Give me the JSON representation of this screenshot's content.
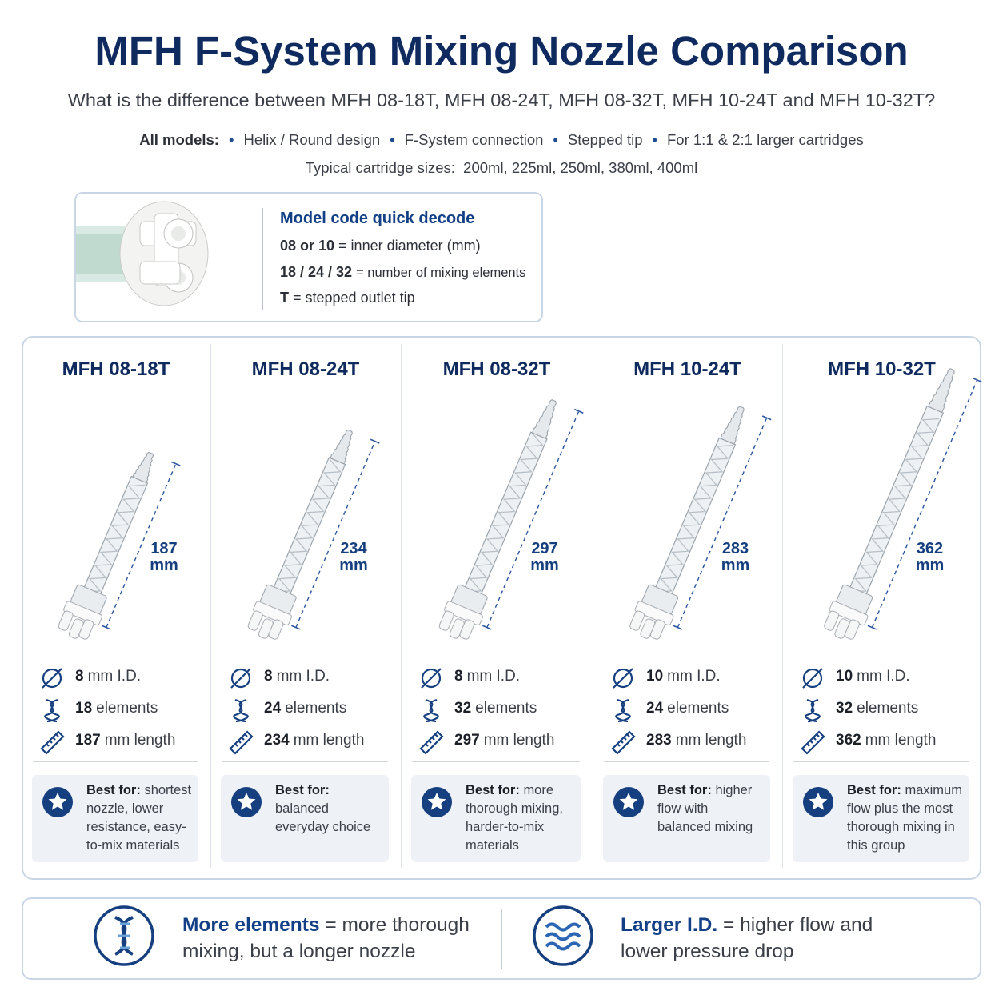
{
  "header": {
    "title": "MFH F-System Mixing Nozzle Comparison",
    "subtitle": "What is the difference between MFH 08-18T, MFH 08-24T, MFH 08-32T, MFH 10-24T and MFH 10-32T?",
    "all_models_label": "All models:",
    "features": [
      "Helix / Round design",
      "F-System connection",
      "Stepped tip",
      "For 1:1 & 2:1 larger cartridges"
    ],
    "cartridge_label": "Typical cartridge sizes:",
    "cartridge_sizes": "200ml, 225ml, 250ml, 380ml, 400ml"
  },
  "decode": {
    "title": "Model code quick decode",
    "rows": [
      {
        "code": "08 or 10",
        "meaning": "= inner diameter (mm)"
      },
      {
        "code": "18 / 24 / 32",
        "meaning": "= number of mixing elements"
      },
      {
        "code": "T",
        "meaning": "= stepped outlet tip"
      }
    ]
  },
  "spec_labels": {
    "diameter": "mm I.D.",
    "elements": "elements",
    "length": "mm length",
    "length_unit": "mm",
    "best_for": "Best for:"
  },
  "models": [
    {
      "name": "MFH 08-18T",
      "inner_diameter": 8,
      "elements": 18,
      "length": 187,
      "best_for": "shortest nozzle, lower resistance, easy-to-mix materials"
    },
    {
      "name": "MFH 08-24T",
      "inner_diameter": 8,
      "elements": 24,
      "length": 234,
      "best_for": "balanced everyday choice"
    },
    {
      "name": "MFH 08-32T",
      "inner_diameter": 8,
      "elements": 32,
      "length": 297,
      "best_for": "more thorough mixing, harder-to-mix materials"
    },
    {
      "name": "MFH 10-24T",
      "inner_diameter": 10,
      "elements": 24,
      "length": 283,
      "best_for": "higher flow with balanced mixing"
    },
    {
      "name": "MFH 10-32T",
      "inner_diameter": 10,
      "elements": 32,
      "length": 362,
      "best_for": "maximum flow plus the most thorough mixing in this group"
    }
  ],
  "footer": [
    {
      "bold": "More elements",
      "text": "= more thorough mixing, but a longer nozzle"
    },
    {
      "bold": "Larger I.D.",
      "text": "= higher flow and lower pressure drop"
    }
  ]
}
